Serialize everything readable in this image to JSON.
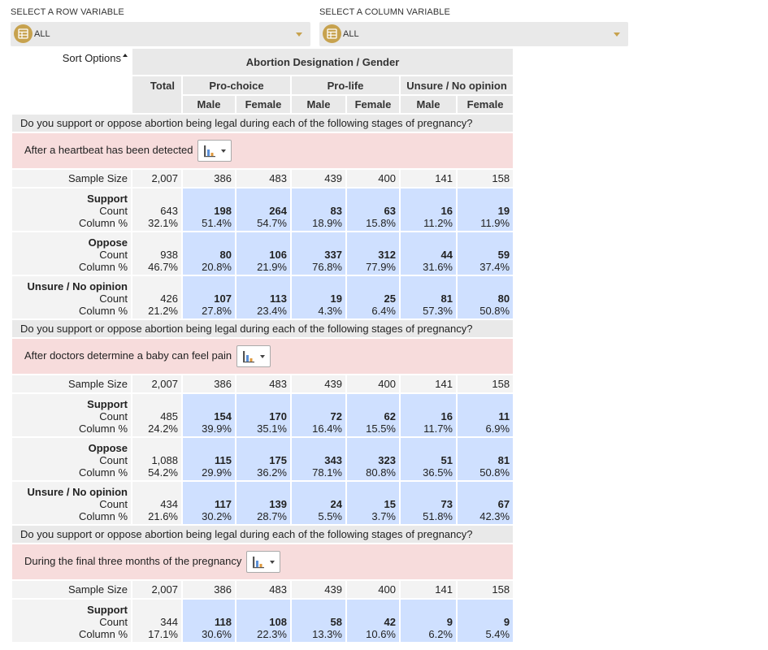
{
  "row_selector": {
    "label": "SELECT A ROW VARIABLE",
    "value": "ALL"
  },
  "col_selector": {
    "label": "SELECT A COLUMN VARIABLE",
    "value": "ALL"
  },
  "sort_label": "Sort Options",
  "banner": {
    "title": "Abortion Designation / Gender",
    "total": "Total",
    "groups": [
      "Pro-choice",
      "Pro-life",
      "Unsure / No opinion"
    ],
    "genders": [
      "Male",
      "Female",
      "Male",
      "Female",
      "Male",
      "Female"
    ]
  },
  "labels": {
    "sample_size": "Sample Size",
    "count": "Count",
    "col_pct": "Column %"
  },
  "sections": [
    {
      "question": "Do you support or oppose abortion being legal during each of the following stages of pregnancy?",
      "stage": "After a heartbeat has been detected",
      "sample": [
        "2,007",
        "386",
        "483",
        "439",
        "400",
        "141",
        "158"
      ],
      "rows": [
        {
          "name": "Support",
          "counts": [
            "643",
            "198",
            "264",
            "83",
            "63",
            "16",
            "19"
          ],
          "pcts": [
            "32.1%",
            "51.4%",
            "54.7%",
            "18.9%",
            "15.8%",
            "11.2%",
            "11.9%"
          ]
        },
        {
          "name": "Oppose",
          "counts": [
            "938",
            "80",
            "106",
            "337",
            "312",
            "44",
            "59"
          ],
          "pcts": [
            "46.7%",
            "20.8%",
            "21.9%",
            "76.8%",
            "77.9%",
            "31.6%",
            "37.4%"
          ]
        },
        {
          "name": "Unsure / No opinion",
          "counts": [
            "426",
            "107",
            "113",
            "19",
            "25",
            "81",
            "80"
          ],
          "pcts": [
            "21.2%",
            "27.8%",
            "23.4%",
            "4.3%",
            "6.4%",
            "57.3%",
            "50.8%"
          ]
        }
      ]
    },
    {
      "question": "Do you support or oppose abortion being legal during each of the following stages of pregnancy?",
      "stage": "After doctors determine a baby can feel pain",
      "sample": [
        "2,007",
        "386",
        "483",
        "439",
        "400",
        "141",
        "158"
      ],
      "rows": [
        {
          "name": "Support",
          "counts": [
            "485",
            "154",
            "170",
            "72",
            "62",
            "16",
            "11"
          ],
          "pcts": [
            "24.2%",
            "39.9%",
            "35.1%",
            "16.4%",
            "15.5%",
            "11.7%",
            "6.9%"
          ]
        },
        {
          "name": "Oppose",
          "counts": [
            "1,088",
            "115",
            "175",
            "343",
            "323",
            "51",
            "81"
          ],
          "pcts": [
            "54.2%",
            "29.9%",
            "36.2%",
            "78.1%",
            "80.8%",
            "36.5%",
            "50.8%"
          ]
        },
        {
          "name": "Unsure / No opinion",
          "counts": [
            "434",
            "117",
            "139",
            "24",
            "15",
            "73",
            "67"
          ],
          "pcts": [
            "21.6%",
            "30.2%",
            "28.7%",
            "5.5%",
            "3.7%",
            "51.8%",
            "42.3%"
          ]
        }
      ]
    },
    {
      "question": "Do you support or oppose abortion being legal during each of the following stages of pregnancy?",
      "stage": "During the final three months of the pregnancy",
      "sample": [
        "2,007",
        "386",
        "483",
        "439",
        "400",
        "141",
        "158"
      ],
      "rows": [
        {
          "name": "Support",
          "counts": [
            "344",
            "118",
            "108",
            "58",
            "42",
            "9",
            "9"
          ],
          "pcts": [
            "17.1%",
            "30.6%",
            "22.3%",
            "13.3%",
            "10.6%",
            "6.2%",
            "5.4%"
          ]
        }
      ]
    }
  ],
  "colors": {
    "accent": "#c7a24e",
    "cell_blue": "#cfe0ff",
    "stage_pink": "#f7dcdc",
    "header_gray": "#e9e9e9"
  },
  "icons": {
    "selector": "table-icon",
    "chart": "bar-chart-icon"
  }
}
